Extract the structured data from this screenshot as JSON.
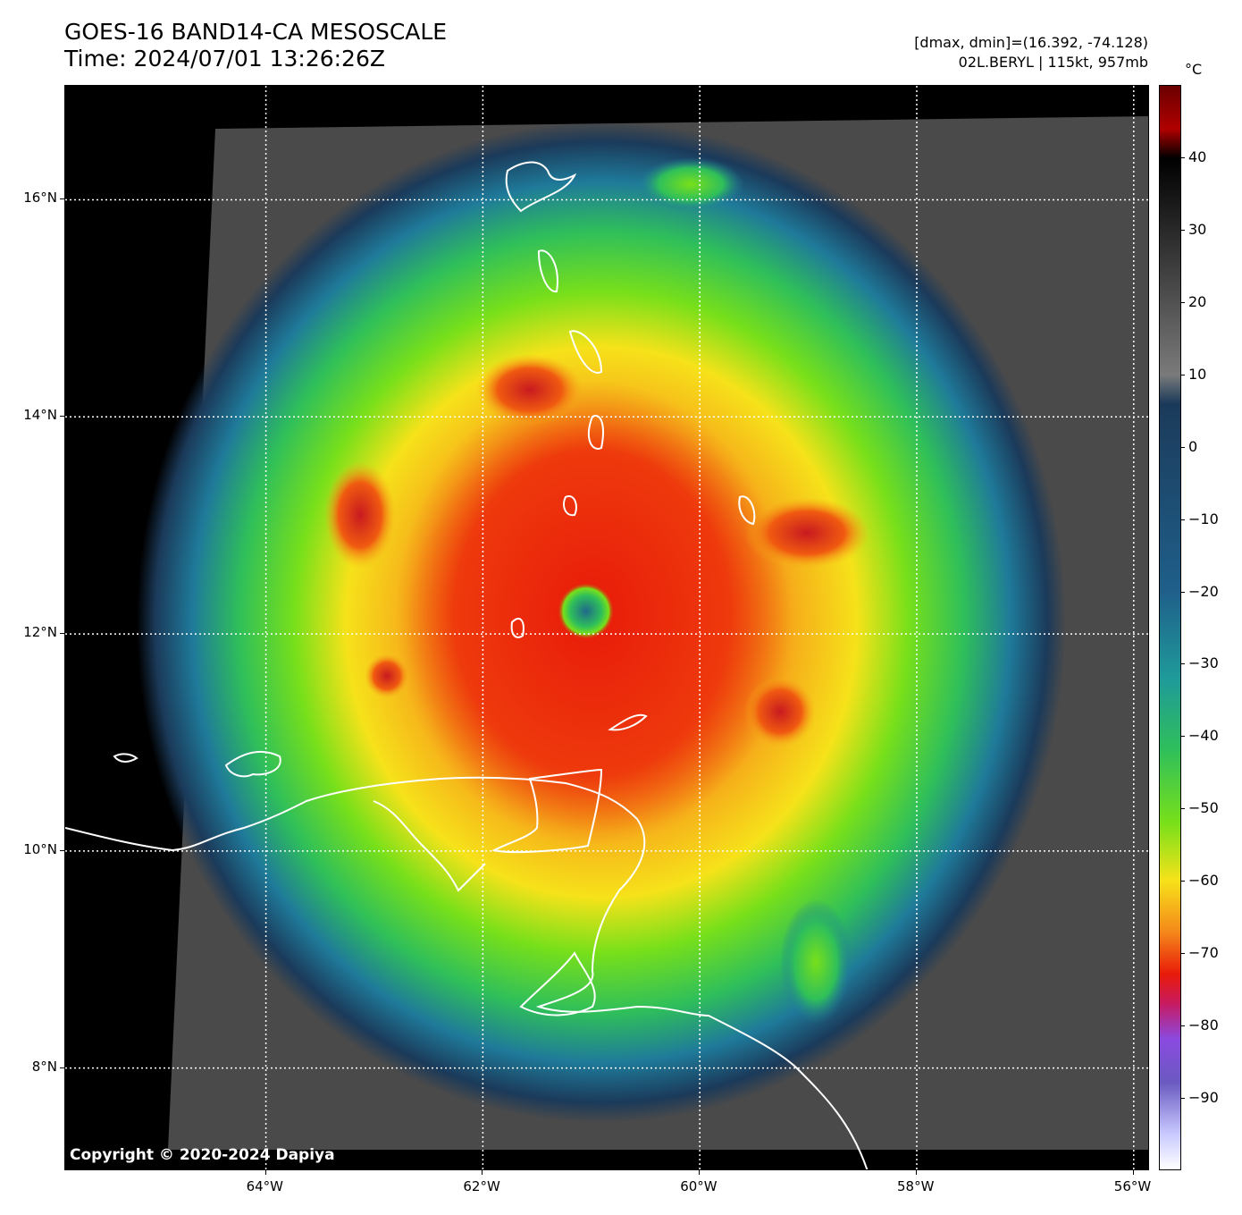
{
  "header": {
    "title_line1": "GOES-16 BAND14-CA MESOSCALE",
    "title_line2": "Time: 2024/07/01 13:26:26Z",
    "info_line1": "[dmax, dmin]=(16.392, -74.128)",
    "info_line2": "02L.BERYL | 115kt, 957mb"
  },
  "copyright": "Copyright © 2020-2024 Dapiya",
  "map": {
    "lon_range": [
      -65.85,
      -55.85
    ],
    "lat_range": [
      7.05,
      17.05
    ],
    "storm_center": {
      "lat": 12.21,
      "lon": -61.05
    },
    "lat_ticks": [
      {
        "value": 8,
        "label": "8°N"
      },
      {
        "value": 10,
        "label": "10°N"
      },
      {
        "value": 12,
        "label": "12°N"
      },
      {
        "value": 14,
        "label": "14°N"
      },
      {
        "value": 16,
        "label": "16°N"
      }
    ],
    "lon_ticks": [
      {
        "value": -64,
        "label": "64°W"
      },
      {
        "value": -62,
        "label": "62°W"
      },
      {
        "value": -60,
        "label": "60°W"
      },
      {
        "value": -58,
        "label": "58°W"
      },
      {
        "value": -56,
        "label": "56°W"
      }
    ],
    "gridlines": "dotted white"
  },
  "colorbar": {
    "unit": "°C",
    "range": [
      -100,
      50
    ],
    "ticks": [
      {
        "value": 40,
        "label": "40"
      },
      {
        "value": 30,
        "label": "30"
      },
      {
        "value": 20,
        "label": "20"
      },
      {
        "value": 10,
        "label": "10"
      },
      {
        "value": 0,
        "label": "0"
      },
      {
        "value": -10,
        "label": "−10"
      },
      {
        "value": -20,
        "label": "−20"
      },
      {
        "value": -30,
        "label": "−30"
      },
      {
        "value": -40,
        "label": "−40"
      },
      {
        "value": -50,
        "label": "−50"
      },
      {
        "value": -60,
        "label": "−60"
      },
      {
        "value": -70,
        "label": "−70"
      },
      {
        "value": -80,
        "label": "−80"
      },
      {
        "value": -90,
        "label": "−90"
      }
    ],
    "stops": [
      {
        "value": 50,
        "color": "#6b0000"
      },
      {
        "value": 44,
        "color": "#b00000"
      },
      {
        "value": 40,
        "color": "#000000"
      },
      {
        "value": 10,
        "color": "#7a7a7a"
      },
      {
        "value": 6,
        "color": "#1b3a5a"
      },
      {
        "value": -20,
        "color": "#1f5f8a"
      },
      {
        "value": -32,
        "color": "#1f9a9a"
      },
      {
        "value": -42,
        "color": "#2fbf5a"
      },
      {
        "value": -52,
        "color": "#78e01a"
      },
      {
        "value": -60,
        "color": "#f6e21a"
      },
      {
        "value": -67,
        "color": "#f58a1a"
      },
      {
        "value": -73,
        "color": "#e81a0a"
      },
      {
        "value": -77,
        "color": "#c81a60"
      },
      {
        "value": -82,
        "color": "#8a4ae0"
      },
      {
        "value": -88,
        "color": "#6a5ac0"
      },
      {
        "value": -95,
        "color": "#c8c8ff"
      },
      {
        "value": -100,
        "color": "#ffffff"
      }
    ]
  }
}
